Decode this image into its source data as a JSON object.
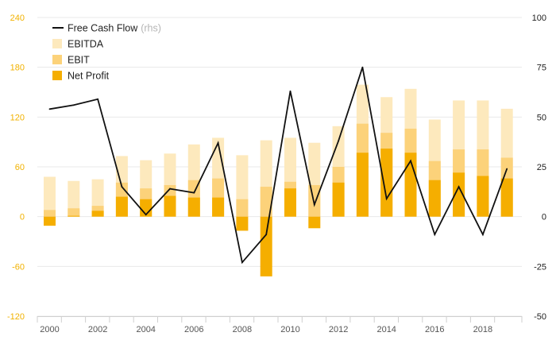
{
  "chart_data": {
    "type": "bar",
    "x": [
      2000,
      2001,
      2002,
      2003,
      2004,
      2005,
      2006,
      2007,
      2008,
      2009,
      2010,
      2011,
      2012,
      2013,
      2014,
      2015,
      2016,
      2017,
      2018,
      2019
    ],
    "x_tick_labels": [
      "2000",
      "2002",
      "2004",
      "2006",
      "2008",
      "2010",
      "2012",
      "2014",
      "2016",
      "2018"
    ],
    "series": [
      {
        "name": "EBITDA",
        "axis": "left",
        "color": "#fde9bd",
        "values": [
          48,
          43,
          45,
          73,
          68,
          76,
          87,
          95,
          74,
          92,
          95,
          89,
          109,
          159,
          144,
          154,
          117,
          140,
          140,
          130
        ]
      },
      {
        "name": "EBIT",
        "axis": "left",
        "color": "#fcd27a",
        "values": [
          8,
          10,
          13,
          41,
          34,
          38,
          44,
          46,
          21,
          36,
          42,
          38,
          60,
          112,
          101,
          106,
          67,
          81,
          81,
          71
        ]
      },
      {
        "name": "Net Profit",
        "axis": "left",
        "color": "#f5ae00",
        "values": [
          -11,
          1,
          7,
          24,
          21,
          25,
          23,
          23,
          -17,
          -72,
          34,
          -14,
          41,
          77,
          82,
          77,
          44,
          53,
          49,
          46
        ]
      },
      {
        "name": "Free Cash Flow",
        "sub": "(rhs)",
        "axis": "right",
        "type": "line",
        "color": "#111111",
        "values": [
          54,
          56,
          59,
          15,
          1,
          14,
          12,
          37,
          -23,
          -9,
          63,
          6,
          38,
          75,
          9,
          28,
          -9,
          15,
          -9,
          24
        ]
      }
    ],
    "y_left": {
      "ticks": [
        -120,
        -60,
        0,
        60,
        120,
        180,
        240
      ],
      "range": [
        -120,
        240
      ],
      "color": "#f2b200"
    },
    "y_right": {
      "ticks": [
        -50,
        -25,
        0,
        25,
        50,
        75,
        100
      ],
      "range": [
        -50,
        100
      ]
    },
    "grid": true,
    "legend_position": "top-left"
  }
}
